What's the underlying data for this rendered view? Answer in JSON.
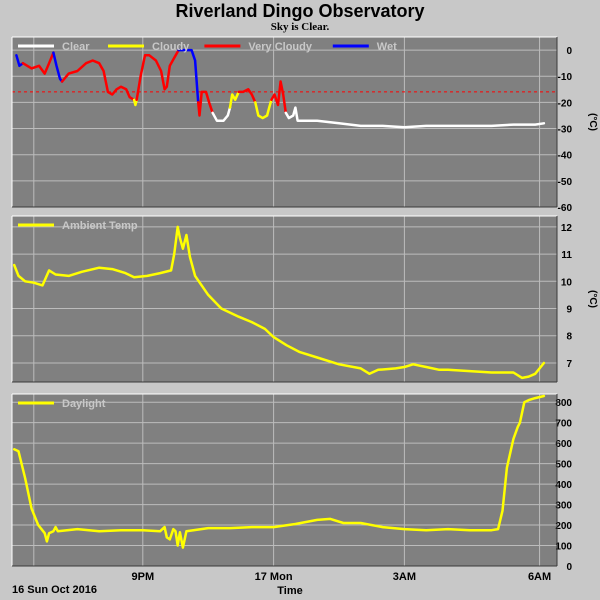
{
  "header": {
    "title": "Riverland Dingo Observatory",
    "subtitle": "Sky is Clear."
  },
  "footer": {
    "date_label": "16 Sun Oct 2016",
    "axis_label": "Time"
  },
  "colors": {
    "panel_bg": "#808080",
    "page_bg": "#c8c8c8",
    "grid": "#bcbcbc",
    "clear": "#ffffff",
    "cloudy": "#ffff00",
    "very_cloudy": "#ff0000",
    "wet": "#0000ff",
    "threshold": "#ff0000"
  },
  "chart_data": [
    {
      "type": "line",
      "name": "sky-temperature",
      "ylabel": "(°C)",
      "ylim": [
        -60,
        5
      ],
      "yticks": [
        0,
        -10,
        -20,
        -30,
        -40,
        -50,
        -60
      ],
      "grid": true,
      "legend_position": "top-left",
      "x_range": [
        18.0,
        30.5
      ],
      "x_gridlines": [
        18.5,
        21,
        24,
        27,
        30.1
      ],
      "x_tick_labels": [
        {
          "label": "9PM",
          "x": 21
        },
        {
          "label": "17 Mon",
          "x": 24
        },
        {
          "label": "3AM",
          "x": 27
        },
        {
          "label": "6AM",
          "x": 30.1
        }
      ],
      "threshold": -16,
      "legend": [
        {
          "label": "Clear",
          "color": "#ffffff"
        },
        {
          "label": "Cloudy",
          "color": "#ffff00"
        },
        {
          "label": "Very Cloudy",
          "color": "#ff0000"
        },
        {
          "label": "Wet",
          "color": "#0000ff"
        }
      ],
      "series": [
        {
          "color": "#0000ff",
          "points": [
            [
              18.1,
              -2
            ],
            [
              18.17,
              -6
            ],
            [
              18.25,
              -5
            ]
          ]
        },
        {
          "color": "#ff0000",
          "points": [
            [
              18.25,
              -5
            ],
            [
              18.45,
              -7
            ],
            [
              18.62,
              -6
            ],
            [
              18.75,
              -9
            ],
            [
              18.85,
              -5
            ],
            [
              18.95,
              -1
            ]
          ]
        },
        {
          "color": "#0000ff",
          "points": [
            [
              18.95,
              -1
            ],
            [
              19.02,
              -6
            ],
            [
              19.1,
              -11
            ],
            [
              19.15,
              -12
            ]
          ]
        },
        {
          "color": "#ff0000",
          "points": [
            [
              19.15,
              -12
            ],
            [
              19.3,
              -9
            ],
            [
              19.5,
              -8
            ],
            [
              19.7,
              -5
            ],
            [
              19.85,
              -4
            ],
            [
              20.0,
              -5
            ],
            [
              20.1,
              -8
            ],
            [
              20.2,
              -16
            ],
            [
              20.3,
              -17
            ],
            [
              20.4,
              -15
            ],
            [
              20.5,
              -14
            ],
            [
              20.62,
              -15
            ],
            [
              20.7,
              -18
            ],
            [
              20.8,
              -19
            ]
          ]
        },
        {
          "color": "#ffff00",
          "points": [
            [
              20.8,
              -19
            ],
            [
              20.83,
              -21
            ],
            [
              20.86,
              -19
            ]
          ]
        },
        {
          "color": "#ff0000",
          "points": [
            [
              20.86,
              -19
            ],
            [
              20.95,
              -10
            ],
            [
              21.05,
              -2
            ],
            [
              21.15,
              -2
            ],
            [
              21.3,
              -4
            ],
            [
              21.42,
              -8
            ],
            [
              21.5,
              -15
            ],
            [
              21.55,
              -14
            ],
            [
              21.62,
              -6
            ],
            [
              21.72,
              -3
            ],
            [
              21.82,
              0
            ]
          ]
        },
        {
          "color": "#0000ff",
          "points": [
            [
              21.82,
              0
            ],
            [
              22.0,
              0
            ],
            [
              22.12,
              0
            ],
            [
              22.2,
              -4
            ],
            [
              22.27,
              -20
            ]
          ]
        },
        {
          "color": "#ff0000",
          "points": [
            [
              22.27,
              -20
            ],
            [
              22.3,
              -25
            ],
            [
              22.35,
              -16
            ],
            [
              22.45,
              -16
            ],
            [
              22.52,
              -20
            ],
            [
              22.6,
              -24
            ]
          ]
        },
        {
          "color": "#ffffff",
          "points": [
            [
              22.6,
              -24
            ],
            [
              22.7,
              -27
            ],
            [
              22.85,
              -27
            ],
            [
              22.95,
              -25
            ],
            [
              23.0,
              -22
            ]
          ]
        },
        {
          "color": "#ffff00",
          "points": [
            [
              23.0,
              -22
            ],
            [
              23.05,
              -17
            ],
            [
              23.12,
              -19
            ],
            [
              23.2,
              -16
            ]
          ]
        },
        {
          "color": "#ff0000",
          "points": [
            [
              23.2,
              -16
            ],
            [
              23.3,
              -16
            ],
            [
              23.42,
              -15
            ],
            [
              23.5,
              -17
            ],
            [
              23.58,
              -20
            ]
          ]
        },
        {
          "color": "#ffff00",
          "points": [
            [
              23.58,
              -20
            ],
            [
              23.65,
              -25
            ],
            [
              23.75,
              -26
            ],
            [
              23.85,
              -25
            ],
            [
              23.9,
              -22
            ],
            [
              23.95,
              -19
            ]
          ]
        },
        {
          "color": "#ff0000",
          "points": [
            [
              23.95,
              -19
            ],
            [
              24.02,
              -17
            ],
            [
              24.1,
              -21
            ],
            [
              24.16,
              -12
            ],
            [
              24.22,
              -17
            ],
            [
              24.28,
              -24
            ]
          ]
        },
        {
          "color": "#ffffff",
          "points": [
            [
              24.28,
              -24
            ],
            [
              24.35,
              -26
            ],
            [
              24.45,
              -25
            ],
            [
              24.5,
              -22
            ],
            [
              24.55,
              -27
            ],
            [
              24.7,
              -27
            ],
            [
              25.0,
              -27
            ],
            [
              25.5,
              -28
            ],
            [
              26.0,
              -29
            ],
            [
              26.5,
              -29
            ],
            [
              27.0,
              -29.5
            ],
            [
              27.5,
              -29
            ],
            [
              28.0,
              -29
            ],
            [
              28.5,
              -29
            ],
            [
              29.0,
              -29
            ],
            [
              29.5,
              -28.5
            ],
            [
              30.0,
              -28.5
            ],
            [
              30.2,
              -28
            ]
          ]
        }
      ]
    },
    {
      "type": "line",
      "name": "ambient-temp",
      "ylabel": "(°C)",
      "ylim": [
        6.3,
        12.4
      ],
      "yticks": [
        7,
        8,
        9,
        10,
        11,
        12
      ],
      "grid": true,
      "legend_position": "top-left",
      "x_range": [
        18.0,
        30.5
      ],
      "x_gridlines": [
        18.5,
        21,
        24,
        27,
        30.1
      ],
      "legend": [
        {
          "label": "Ambient Temp",
          "color": "#ffff00"
        }
      ],
      "series": [
        {
          "color": "#ffff00",
          "points": [
            [
              18.05,
              10.6
            ],
            [
              18.15,
              10.2
            ],
            [
              18.3,
              10.0
            ],
            [
              18.5,
              9.95
            ],
            [
              18.7,
              9.85
            ],
            [
              18.85,
              10.4
            ],
            [
              19.0,
              10.25
            ],
            [
              19.3,
              10.2
            ],
            [
              19.6,
              10.35
            ],
            [
              20.0,
              10.5
            ],
            [
              20.3,
              10.45
            ],
            [
              20.6,
              10.3
            ],
            [
              20.8,
              10.15
            ],
            [
              21.1,
              10.2
            ],
            [
              21.4,
              10.3
            ],
            [
              21.65,
              10.4
            ],
            [
              21.72,
              11.0
            ],
            [
              21.8,
              12.0
            ],
            [
              21.85,
              11.6
            ],
            [
              21.92,
              11.2
            ],
            [
              22.0,
              11.7
            ],
            [
              22.08,
              10.9
            ],
            [
              22.2,
              10.2
            ],
            [
              22.5,
              9.5
            ],
            [
              22.8,
              9.0
            ],
            [
              23.2,
              8.7
            ],
            [
              23.5,
              8.5
            ],
            [
              23.8,
              8.25
            ],
            [
              24.0,
              7.95
            ],
            [
              24.3,
              7.65
            ],
            [
              24.6,
              7.4
            ],
            [
              25.0,
              7.2
            ],
            [
              25.5,
              6.95
            ],
            [
              26.0,
              6.8
            ],
            [
              26.2,
              6.6
            ],
            [
              26.4,
              6.75
            ],
            [
              26.8,
              6.8
            ],
            [
              27.0,
              6.85
            ],
            [
              27.2,
              6.95
            ],
            [
              27.5,
              6.85
            ],
            [
              27.8,
              6.75
            ],
            [
              28.0,
              6.75
            ],
            [
              28.5,
              6.7
            ],
            [
              29.0,
              6.65
            ],
            [
              29.5,
              6.65
            ],
            [
              29.7,
              6.45
            ],
            [
              29.85,
              6.5
            ],
            [
              30.0,
              6.6
            ],
            [
              30.2,
              7.0
            ]
          ]
        }
      ]
    },
    {
      "type": "line",
      "name": "daylight",
      "ylabel": "",
      "ylim": [
        0,
        840
      ],
      "yticks": [
        0,
        100,
        200,
        300,
        400,
        500,
        600,
        700,
        800
      ],
      "grid": true,
      "legend_position": "top-left",
      "x_range": [
        18.0,
        30.5
      ],
      "x_gridlines": [
        18.5,
        21,
        24,
        27,
        30.1
      ],
      "legend": [
        {
          "label": "Daylight",
          "color": "#ffff00"
        }
      ],
      "series": [
        {
          "color": "#ffff00",
          "points": [
            [
              18.05,
              570
            ],
            [
              18.15,
              560
            ],
            [
              18.3,
              430
            ],
            [
              18.45,
              280
            ],
            [
              18.6,
              200
            ],
            [
              18.75,
              160
            ],
            [
              18.8,
              120
            ],
            [
              18.85,
              160
            ],
            [
              18.95,
              170
            ],
            [
              19.0,
              190
            ],
            [
              19.05,
              170
            ],
            [
              19.5,
              180
            ],
            [
              20.0,
              170
            ],
            [
              20.5,
              175
            ],
            [
              21.0,
              175
            ],
            [
              21.4,
              170
            ],
            [
              21.5,
              190
            ],
            [
              21.55,
              140
            ],
            [
              21.62,
              130
            ],
            [
              21.7,
              180
            ],
            [
              21.75,
              170
            ],
            [
              21.8,
              100
            ],
            [
              21.85,
              165
            ],
            [
              21.92,
              90
            ],
            [
              22.0,
              170
            ],
            [
              22.5,
              185
            ],
            [
              23.0,
              185
            ],
            [
              23.5,
              190
            ],
            [
              24.0,
              190
            ],
            [
              24.5,
              205
            ],
            [
              25.0,
              225
            ],
            [
              25.3,
              230
            ],
            [
              25.6,
              210
            ],
            [
              26.0,
              210
            ],
            [
              26.5,
              190
            ],
            [
              27.0,
              180
            ],
            [
              27.5,
              175
            ],
            [
              28.0,
              180
            ],
            [
              28.5,
              175
            ],
            [
              29.0,
              175
            ],
            [
              29.15,
              180
            ],
            [
              29.25,
              270
            ],
            [
              29.35,
              480
            ],
            [
              29.5,
              620
            ],
            [
              29.6,
              680
            ],
            [
              29.65,
              700
            ],
            [
              29.75,
              800
            ],
            [
              29.85,
              810
            ],
            [
              30.0,
              820
            ],
            [
              30.2,
              830
            ]
          ]
        }
      ]
    }
  ]
}
